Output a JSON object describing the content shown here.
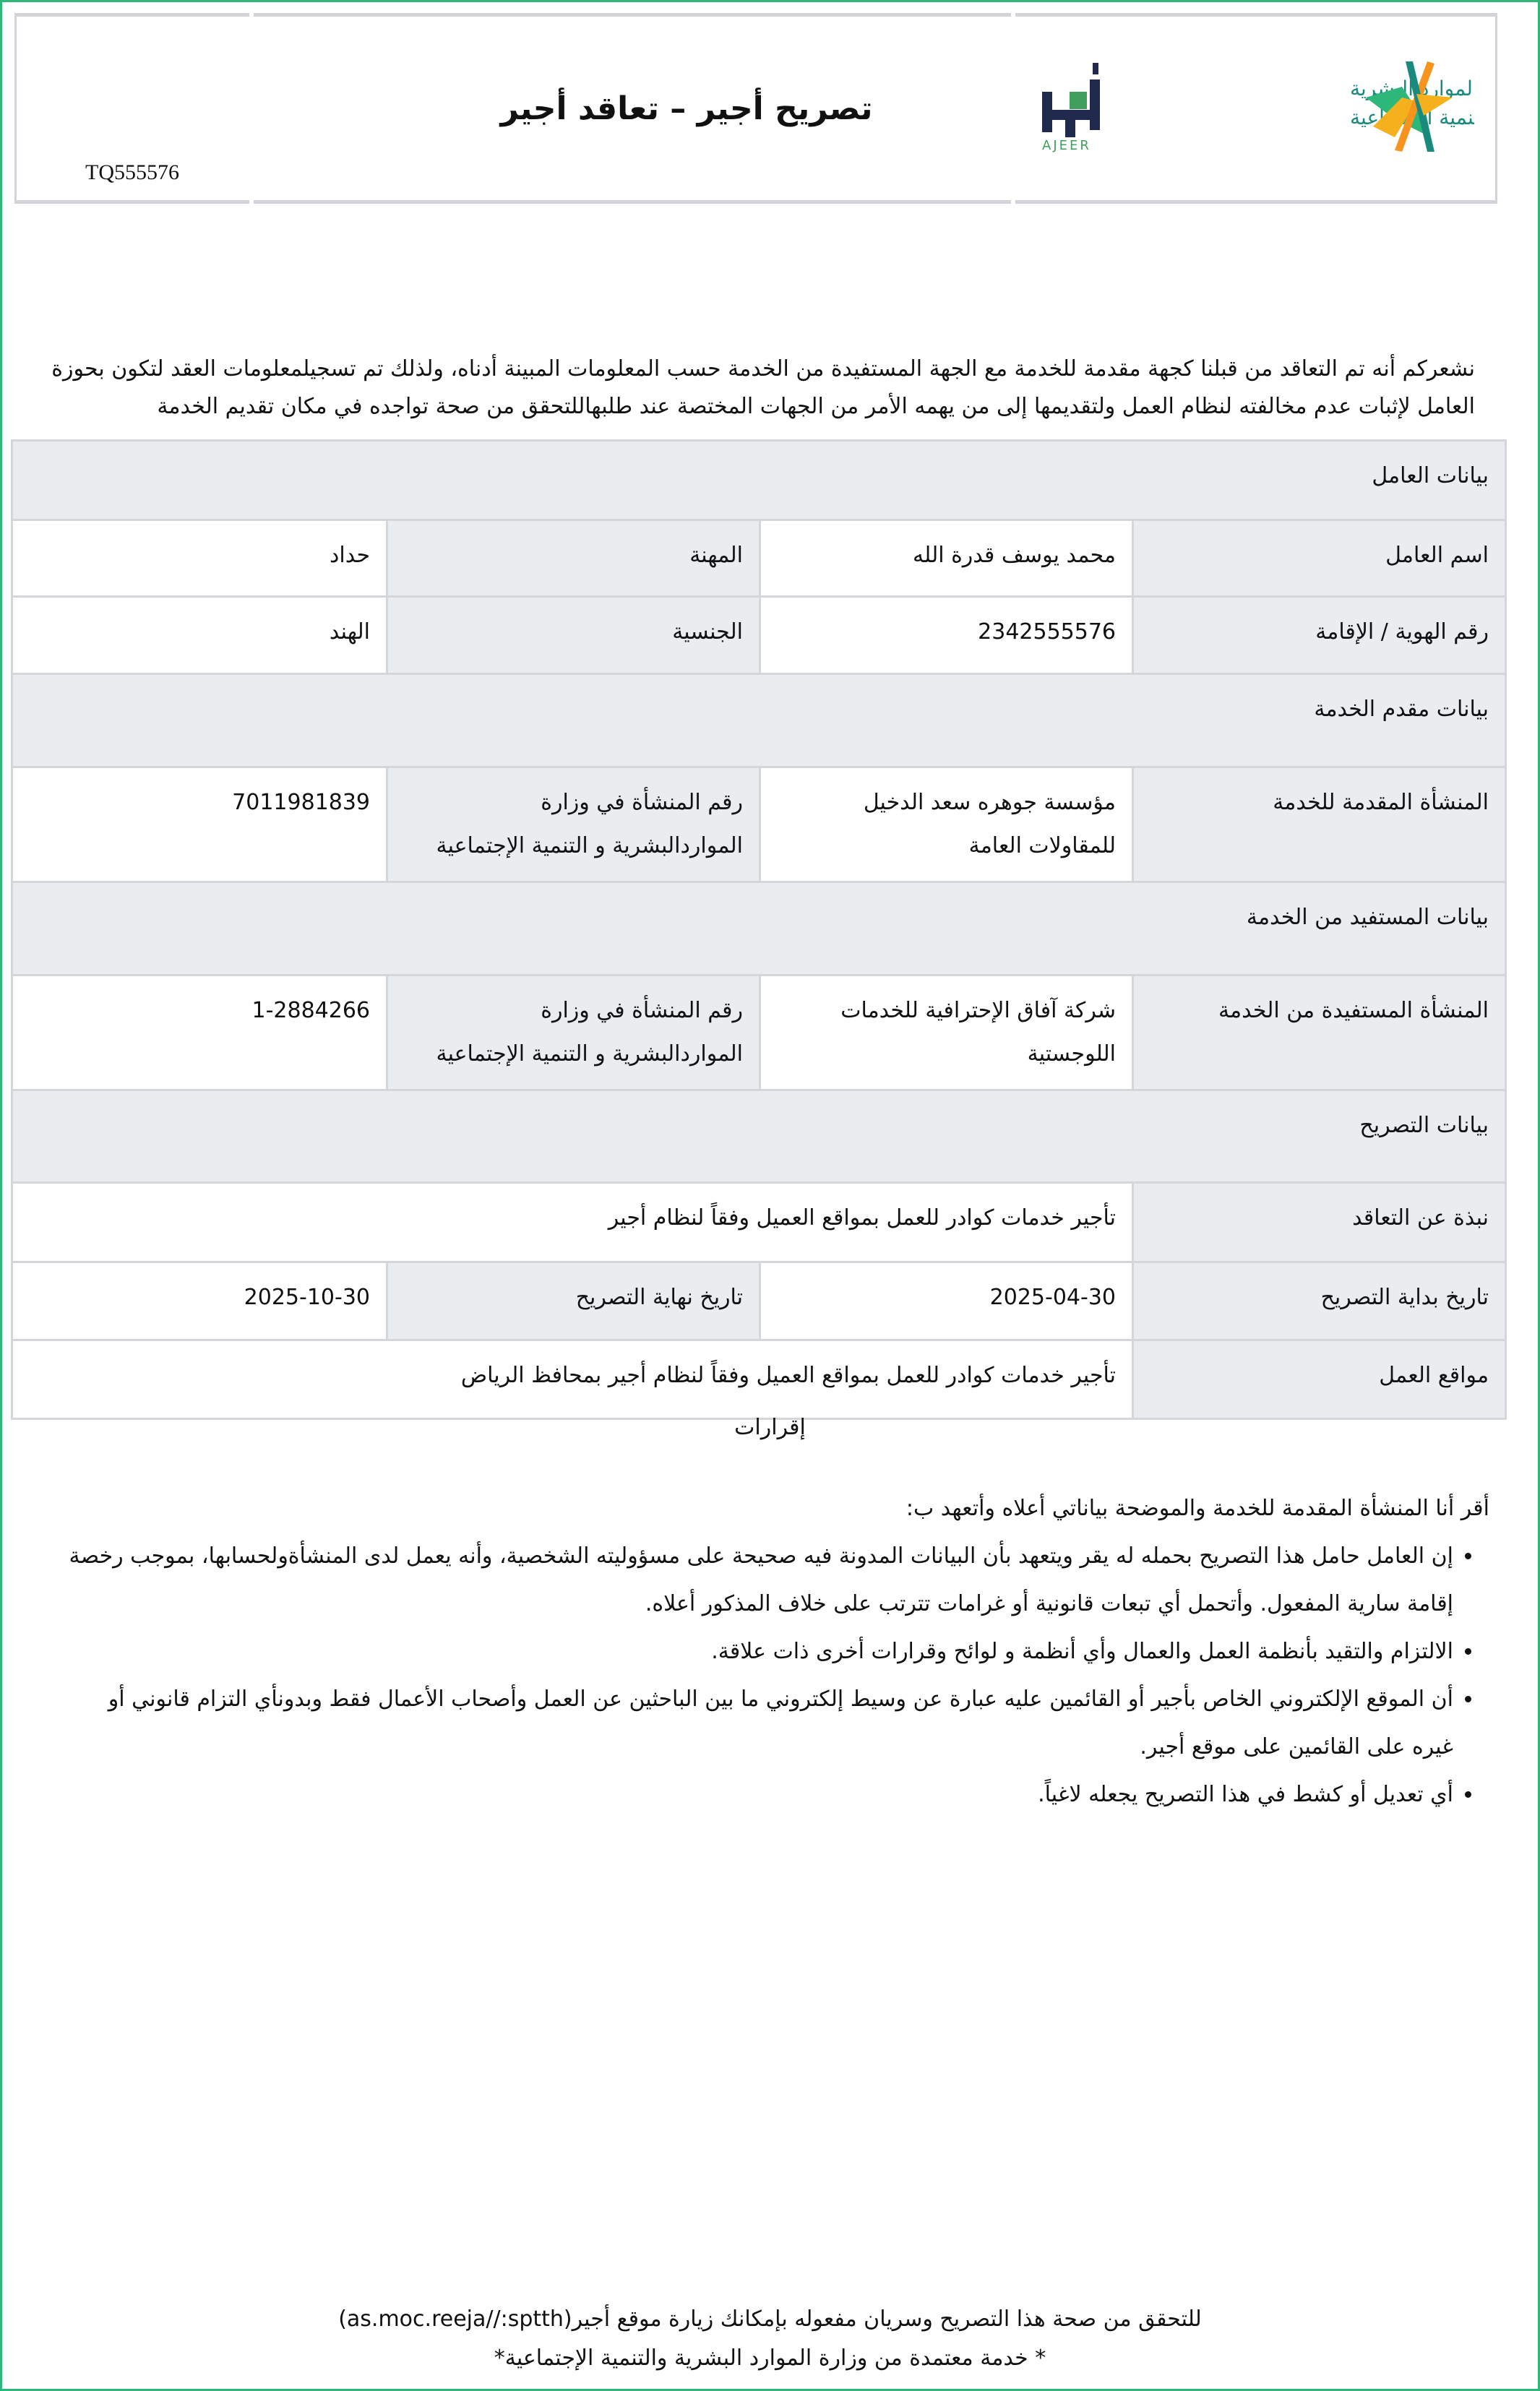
{
  "header": {
    "title": "تصريح أجير –  تعاقد أجير",
    "code": "TQ555576",
    "logos": {
      "ajeer_text": "أجير",
      "ajeer_latin": "AJEER",
      "ministry_line1": "الموارد البشرية",
      "ministry_line2": "والتنمية الاجتماعية"
    }
  },
  "intro": "نشعركم أنه تم التعاقد من قبلنا كجهة مقدمة للخدمة مع الجهة المستفيدة من الخدمة حسب المعلومات المبينة أدناه، ولذلك تم تسجيلمعلومات العقد لتكون بحوزة العامل لإثبات عدم مخالفته لنظام العمل ولتقديمها إلى من يهمه الأمر من الجهات المختصة عند طلبهاللتحقق من صحة تواجده في مكان تقديم الخدمة",
  "worker": {
    "section": "بيانات العامل",
    "name_label": "اسم العامل",
    "name": "محمد يوسف قدرة الله",
    "job_label": "المهنة",
    "job": "حداد",
    "id_label": "رقم الهوية / الإقامة",
    "id": "2342555576",
    "nat_label": "الجنسية",
    "nat": "الهند"
  },
  "provider": {
    "section": "بيانات مقدم الخدمة",
    "org_label": "المنشأة المقدمة للخدمة",
    "org": "مؤسسة جوهره سعد الدخيل للمقاولات العامة",
    "num_label": "رقم المنشأة في وزارة المواردالبشرية و التنمية الإجتماعية",
    "num": "7011981839"
  },
  "beneficiary": {
    "section": "بيانات المستفيد من الخدمة",
    "org_label": "المنشأة المستفيدة من الخدمة",
    "org": "شركة آفاق الإحترافية للخدمات اللوجستية",
    "num_label": "رقم المنشأة في وزارة المواردالبشرية و التنمية الإجتماعية",
    "num": "1-2884266"
  },
  "permit": {
    "section": "بيانات التصريح",
    "about_label": "نبذة عن التعاقد",
    "about": "تأجير خدمات كوادر للعمل بمواقع العميل وفقاً لنظام أجير",
    "start_label": "تاريخ بداية التصريح",
    "start": "2025-04-30",
    "end_label": "تاريخ نهاية التصريح",
    "end": "2025-10-30",
    "sites_label": "مواقع العمل",
    "sites": "تأجير خدمات كوادر للعمل بمواقع العميل وفقاً لنظام أجير بمحافظ الرياض"
  },
  "declarations": {
    "heading": "إقرارات",
    "intro": "أقر أنا المنشأة المقدمة للخدمة والموضحة بياناتي أعلاه وأتعهد ب:",
    "items": [
      "إن العامل حامل هذا التصريح بحمله له يقر ويتعهد بأن البيانات المدونة فيه صحيحة على مسؤوليته الشخصية، وأنه يعمل لدى المنشأةولحسابها، بموجب رخصة إقامة سارية المفعول. وأتحمل أي تبعات قانونية أو غرامات تترتب على خلاف المذكور أعلاه.",
      "الالتزام والتقيد بأنظمة العمل والعمال وأي أنظمة و لوائح وقرارات أخرى ذات علاقة.",
      "أن الموقع الإلكتروني الخاص بأجير أو القائمين عليه عبارة عن وسيط إلكتروني ما بين الباحثين عن العمل وأصحاب الأعمال فقط وبدونأي التزام قانوني أو غيره على القائمين على موقع أجير.",
      "أي تعديل أو كشط في هذا التصريح يجعله لاغياً."
    ]
  },
  "footer": {
    "verify": "للتحقق من صحة هذا التصريح وسريان مفعوله بإمكانك زيارة موقع أجير(as.moc.reeja//:sptth)",
    "approved": "* خدمة معتمدة من وزارة الموارد البشرية والتنمية الإجتماعية*"
  },
  "colors": {
    "frame": "#2db87a",
    "label_bg": "#eaedef",
    "border": "#d4d6da",
    "ajeer_navy": "#1f2a4d",
    "ajeer_green": "#3f9e5c"
  }
}
